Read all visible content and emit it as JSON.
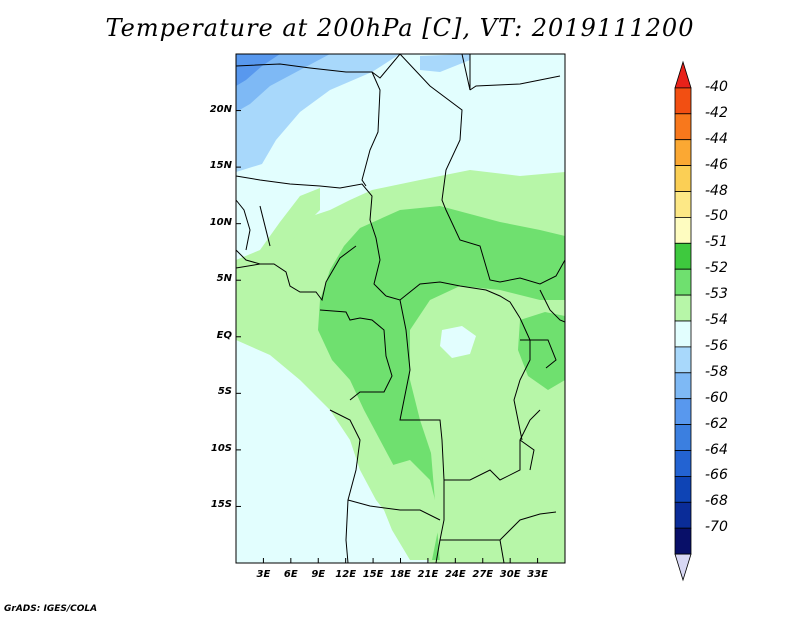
{
  "title": "Temperature at 200hPa [C], VT: 2019111200",
  "credit": "GrADS: IGES/COLA",
  "map": {
    "lon_range": [
      0,
      36
    ],
    "lat_range": [
      -20,
      25
    ],
    "lat_ticks": [
      "20N",
      "15N",
      "10N",
      "5N",
      "EQ",
      "5S",
      "10S",
      "15S"
    ],
    "lat_values": [
      20,
      15,
      10,
      5,
      0,
      -5,
      -10,
      -15
    ],
    "lon_ticks": [
      "3E",
      "6E",
      "9E",
      "12E",
      "15E",
      "18E",
      "21E",
      "24E",
      "27E",
      "30E",
      "33E"
    ],
    "lon_values": [
      3,
      6,
      9,
      12,
      15,
      18,
      21,
      24,
      27,
      30,
      33
    ]
  },
  "colorbar": {
    "labels": [
      "-40",
      "-42",
      "-44",
      "-46",
      "-48",
      "-50",
      "-51",
      "-52",
      "-53",
      "-54",
      "-56",
      "-58",
      "-60",
      "-62",
      "-64",
      "-66",
      "-68",
      "-70"
    ],
    "colors": [
      "#e8221a",
      "#f24f12",
      "#f8781c",
      "#fba833",
      "#fbcf55",
      "#fde886",
      "#fefcc0",
      "#3ec93e",
      "#6fe06f",
      "#b7f6a8",
      "#e2fefe",
      "#a8d8fb",
      "#7eb9f5",
      "#5898ee",
      "#3b7fe0",
      "#2363d2",
      "#0e44b5",
      "#0a2c98",
      "#080f68",
      "#d8d8f4"
    ]
  }
}
